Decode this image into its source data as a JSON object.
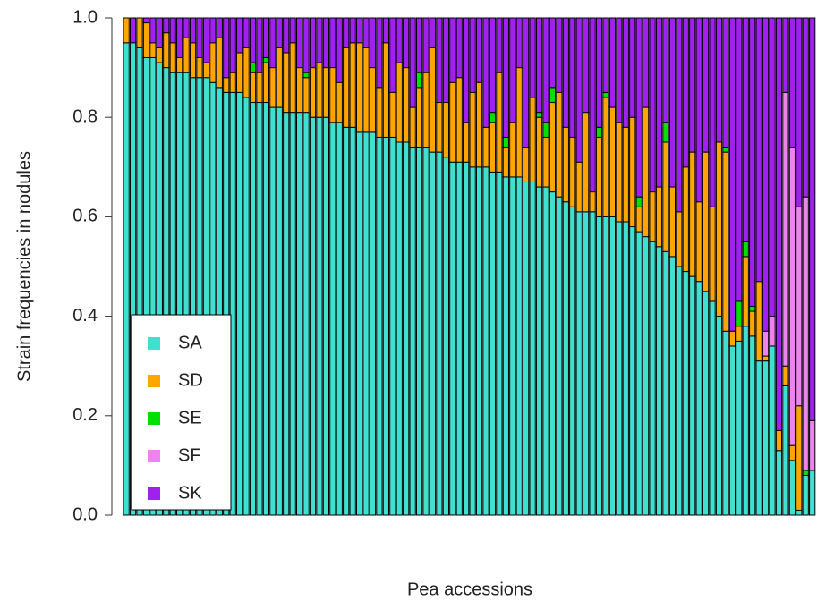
{
  "chart_data": {
    "type": "stacked_bar",
    "y_label": "Strain frequencies in nodules",
    "x_label": "Pea accessions",
    "ylim": [
      0,
      1
    ],
    "yticks": [
      {
        "value": 0,
        "label": "0.0"
      },
      {
        "value": 0.2,
        "label": "0.2"
      },
      {
        "value": 0.4,
        "label": "0.4"
      },
      {
        "value": 0.6,
        "label": "0.6"
      },
      {
        "value": 0.8,
        "label": "0.8"
      },
      {
        "value": 1,
        "label": "1.0"
      }
    ],
    "legend": "bottom-left",
    "series": [
      {
        "name": "SA",
        "color": "#40e0d0",
        "values": [
          0.95,
          0.95,
          0.94,
          0.92,
          0.92,
          0.91,
          0.9,
          0.89,
          0.89,
          0.89,
          0.88,
          0.88,
          0.88,
          0.87,
          0.86,
          0.85,
          0.85,
          0.85,
          0.84,
          0.83,
          0.83,
          0.83,
          0.82,
          0.82,
          0.81,
          0.81,
          0.81,
          0.81,
          0.8,
          0.8,
          0.8,
          0.79,
          0.79,
          0.78,
          0.78,
          0.77,
          0.77,
          0.77,
          0.76,
          0.76,
          0.76,
          0.75,
          0.75,
          0.74,
          0.74,
          0.74,
          0.73,
          0.73,
          0.72,
          0.71,
          0.71,
          0.71,
          0.7,
          0.7,
          0.7,
          0.69,
          0.69,
          0.68,
          0.68,
          0.68,
          0.67,
          0.67,
          0.66,
          0.66,
          0.65,
          0.64,
          0.63,
          0.62,
          0.61,
          0.61,
          0.61,
          0.6,
          0.6,
          0.6,
          0.59,
          0.59,
          0.58,
          0.57,
          0.56,
          0.55,
          0.54,
          0.53,
          0.52,
          0.5,
          0.49,
          0.48,
          0.47,
          0.45,
          0.43,
          0.4,
          0.37,
          0.34,
          0.35,
          0.38,
          0.36,
          0.31,
          0.31,
          0.34,
          0.13,
          0.26,
          0.11,
          0.01,
          0.08,
          0.09
        ]
      },
      {
        "name": "SD",
        "color": "#ffa500",
        "values": [
          0.05,
          0,
          0.06,
          0.07,
          0.03,
          0.03,
          0.07,
          0.06,
          0.03,
          0.07,
          0.07,
          0.04,
          0.03,
          0.08,
          0.1,
          0.03,
          0.04,
          0.08,
          0.1,
          0.06,
          0.06,
          0.08,
          0.08,
          0.12,
          0.12,
          0.14,
          0.09,
          0.07,
          0.1,
          0.11,
          0.1,
          0.11,
          0.08,
          0.16,
          0.17,
          0.18,
          0.17,
          0.13,
          0.1,
          0.19,
          0.09,
          0.16,
          0.15,
          0.08,
          0.12,
          0.15,
          0.21,
          0.1,
          0.11,
          0.16,
          0.17,
          0.08,
          0.15,
          0.17,
          0.08,
          0.1,
          0.2,
          0.06,
          0.11,
          0.22,
          0.07,
          0.17,
          0.14,
          0.1,
          0.18,
          0.21,
          0.15,
          0.14,
          0.1,
          0.2,
          0.04,
          0.16,
          0.24,
          0.22,
          0.2,
          0.19,
          0.22,
          0.05,
          0.26,
          0.1,
          0.12,
          0.22,
          0.14,
          0.11,
          0.21,
          0.25,
          0.16,
          0.28,
          0.19,
          0.35,
          0.36,
          0.03,
          0.03,
          0.14,
          0.05,
          0.16,
          0.01,
          0,
          0.04,
          0.04,
          0.03,
          0.21,
          0,
          0
        ]
      },
      {
        "name": "SE",
        "color": "#00e000",
        "values": [
          0,
          0,
          0,
          0,
          0,
          0,
          0,
          0,
          0,
          0,
          0,
          0,
          0,
          0,
          0,
          0,
          0,
          0,
          0,
          0.02,
          0,
          0.01,
          0,
          0,
          0,
          0,
          0,
          0.01,
          0,
          0,
          0,
          0,
          0,
          0,
          0,
          0,
          0,
          0,
          0,
          0,
          0,
          0,
          0,
          0,
          0.03,
          0,
          0,
          0,
          0,
          0,
          0,
          0,
          0,
          0,
          0,
          0.02,
          0,
          0.02,
          0,
          0,
          0,
          0,
          0.01,
          0.03,
          0.03,
          0,
          0,
          0,
          0,
          0,
          0,
          0.02,
          0.01,
          0,
          0,
          0,
          0,
          0.02,
          0,
          0,
          0,
          0.04,
          0,
          0,
          0,
          0,
          0,
          0,
          0,
          0,
          0.01,
          0,
          0.05,
          0.03,
          0.01,
          0,
          0,
          0,
          0,
          0,
          0,
          0,
          0.01,
          0
        ]
      },
      {
        "name": "SF",
        "color": "#ee82ee",
        "values": [
          0,
          0,
          0,
          0,
          0,
          0,
          0,
          0,
          0,
          0,
          0,
          0,
          0,
          0,
          0,
          0,
          0,
          0,
          0,
          0,
          0,
          0,
          0,
          0,
          0,
          0,
          0,
          0,
          0,
          0,
          0,
          0,
          0,
          0,
          0,
          0,
          0,
          0,
          0,
          0,
          0,
          0,
          0,
          0,
          0,
          0,
          0,
          0,
          0,
          0,
          0,
          0,
          0,
          0,
          0,
          0,
          0,
          0,
          0,
          0,
          0,
          0,
          0,
          0,
          0,
          0,
          0,
          0,
          0,
          0,
          0,
          0,
          0,
          0,
          0,
          0,
          0,
          0,
          0,
          0,
          0,
          0,
          0,
          0,
          0,
          0,
          0,
          0,
          0,
          0,
          0,
          0,
          0,
          0,
          0,
          0,
          0.05,
          0.06,
          0,
          0.55,
          0.6,
          0.4,
          0.55,
          0.1
        ]
      },
      {
        "name": "SK",
        "color": "#a020f0",
        "values": [
          0,
          0.05,
          0,
          0.01,
          0.05,
          0.06,
          0.03,
          0.05,
          0.08,
          0.04,
          0.05,
          0.08,
          0.09,
          0.05,
          0.04,
          0.12,
          0.11,
          0.07,
          0.06,
          0.09,
          0.11,
          0.08,
          0.1,
          0.06,
          0.07,
          0.05,
          0.1,
          0.11,
          0.1,
          0.09,
          0.1,
          0.1,
          0.13,
          0.06,
          0.05,
          0.05,
          0.06,
          0.1,
          0.14,
          0.05,
          0.15,
          0.09,
          0.1,
          0.18,
          0.11,
          0.11,
          0.06,
          0.17,
          0.17,
          0.13,
          0.12,
          0.21,
          0.15,
          0.13,
          0.22,
          0.19,
          0.11,
          0.24,
          0.21,
          0.1,
          0.26,
          0.16,
          0.19,
          0.21,
          0.14,
          0.15,
          0.22,
          0.24,
          0.29,
          0.19,
          0.35,
          0.22,
          0.15,
          0.18,
          0.21,
          0.22,
          0.2,
          0.36,
          0.18,
          0.35,
          0.34,
          0.21,
          0.34,
          0.39,
          0.3,
          0.27,
          0.37,
          0.27,
          0.38,
          0.25,
          0.26,
          0.63,
          0.57,
          0.45,
          0.58,
          0.53,
          0.63,
          0.6,
          0.83,
          0.15,
          0.26,
          0.38,
          0.36,
          0.81
        ]
      }
    ]
  }
}
